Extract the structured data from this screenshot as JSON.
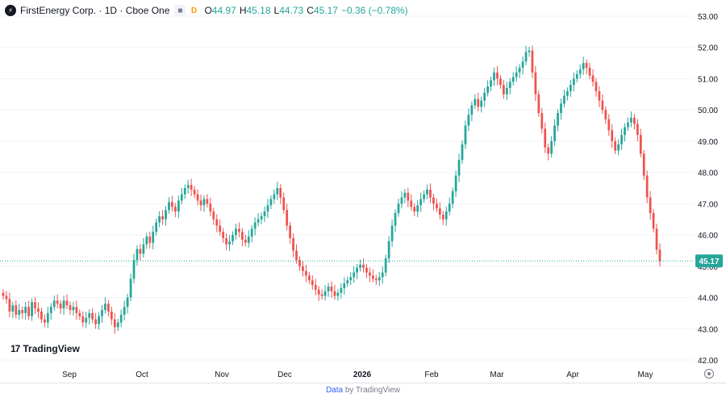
{
  "header": {
    "symbol_title": "FirstEnergy Corp. · 1D · Cboe One",
    "flag_label": "■",
    "delay_badge": "D",
    "ohlc": {
      "o_label": "O",
      "o_value": "44.97",
      "h_label": "H",
      "h_value": "45.18",
      "l_label": "L",
      "l_value": "44.73",
      "c_label": "C",
      "c_value": "45.17",
      "change": "−0.36 (−0.78%)"
    }
  },
  "branding": {
    "logo_text": "TradingView",
    "logo_mark": "17"
  },
  "footer": {
    "data_link": "Data",
    "by_text": "by TradingView"
  },
  "colors": {
    "up": "#26a69a",
    "down": "#ef5350",
    "grid": "#f0f3fa",
    "axis_text": "#131722"
  },
  "icons": {
    "settings": "gear-icon",
    "symbol_logo": "firstenergy-logo-icon"
  },
  "chart_data": {
    "type": "candlestick",
    "price_axis": {
      "min": 42,
      "max": 53,
      "ticks": [
        "53.00",
        "52.00",
        "51.00",
        "50.00",
        "49.00",
        "48.00",
        "47.00",
        "46.00",
        "45.00",
        "44.00",
        "43.00",
        "42.00"
      ]
    },
    "time_axis": [
      "Sep",
      "Oct",
      "Nov",
      "Dec",
      "2026",
      "Feb",
      "Mar",
      "Apr",
      "May"
    ],
    "last_price": "45.17",
    "grid": true,
    "closes": [
      44.05,
      43.95,
      43.55,
      43.75,
      43.45,
      43.6,
      43.5,
      43.7,
      43.4,
      43.85,
      43.65,
      43.55,
      43.3,
      43.2,
      43.5,
      43.7,
      43.9,
      43.8,
      43.65,
      43.9,
      43.75,
      43.6,
      43.7,
      43.5,
      43.4,
      43.2,
      43.35,
      43.5,
      43.3,
      43.15,
      43.4,
      43.6,
      43.8,
      43.55,
      43.3,
      43.05,
      43.2,
      43.45,
      43.7,
      44.0,
      44.6,
      45.2,
      45.55,
      45.4,
      45.7,
      45.95,
      45.75,
      46.1,
      46.4,
      46.6,
      46.5,
      46.8,
      47.05,
      46.9,
      46.75,
      47.1,
      47.3,
      47.5,
      47.6,
      47.45,
      47.3,
      47.1,
      46.95,
      47.15,
      47.0,
      46.75,
      46.5,
      46.3,
      46.1,
      45.9,
      45.7,
      45.8,
      46.0,
      46.2,
      46.1,
      45.85,
      45.75,
      45.95,
      46.2,
      46.4,
      46.5,
      46.6,
      46.75,
      46.95,
      47.15,
      47.3,
      47.5,
      47.2,
      46.8,
      46.3,
      45.9,
      45.5,
      45.2,
      45.0,
      44.85,
      44.7,
      44.55,
      44.4,
      44.25,
      44.1,
      44.05,
      44.2,
      44.35,
      44.2,
      44.05,
      44.15,
      44.3,
      44.45,
      44.55,
      44.65,
      44.8,
      44.95,
      45.05,
      44.95,
      44.8,
      44.7,
      44.6,
      44.55,
      44.65,
      44.8,
      45.25,
      45.8,
      46.3,
      46.7,
      47.0,
      47.2,
      47.35,
      47.1,
      46.9,
      46.75,
      46.95,
      47.15,
      47.3,
      47.45,
      47.2,
      47.0,
      46.85,
      46.65,
      46.5,
      46.75,
      47.0,
      47.4,
      47.9,
      48.4,
      48.9,
      49.5,
      49.85,
      50.15,
      50.35,
      50.1,
      50.3,
      50.55,
      50.75,
      50.95,
      51.2,
      51.0,
      50.8,
      50.5,
      50.7,
      50.9,
      51.05,
      51.2,
      51.35,
      51.55,
      51.85,
      51.9,
      51.2,
      50.5,
      49.9,
      49.4,
      48.8,
      48.6,
      49.0,
      49.5,
      49.9,
      50.2,
      50.45,
      50.6,
      50.8,
      51.0,
      51.15,
      51.3,
      51.5,
      51.35,
      51.1,
      50.9,
      50.6,
      50.3,
      50.0,
      49.7,
      49.35,
      49.0,
      48.7,
      48.9,
      49.2,
      49.45,
      49.6,
      49.75,
      49.55,
      49.2,
      48.6,
      47.9,
      47.2,
      46.7,
      46.2,
      45.53,
      45.17
    ]
  }
}
